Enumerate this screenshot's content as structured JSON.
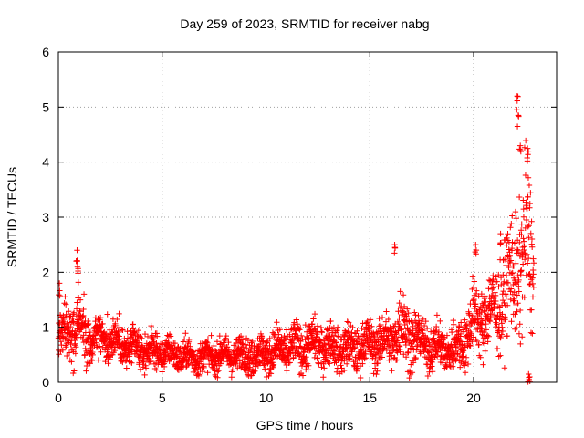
{
  "chart_data": {
    "type": "scatter",
    "title": "Day 259 of 2023, SRMTID for receiver nabg",
    "xlabel": "GPS time / hours",
    "ylabel": "SRMTID / TECUs",
    "xlim": [
      0,
      24
    ],
    "ylim": [
      0,
      6
    ],
    "xticks": [
      0,
      5,
      10,
      15,
      20
    ],
    "yticks": [
      0,
      1,
      2,
      3,
      4,
      5,
      6
    ],
    "grid": true,
    "marker": "+",
    "color": "#ff0000",
    "series": [
      {
        "name": "SRMTID",
        "envelope_x": [
          0,
          0.3,
          0.9,
          1.5,
          2.5,
          3.5,
          5,
          6.5,
          8,
          9.5,
          11,
          12.5,
          14,
          15,
          16,
          16.5,
          17.5,
          18.5,
          19.2,
          20,
          21,
          22,
          22.5,
          22.9
        ],
        "envelope_mean": [
          0.8,
          0.9,
          1.0,
          0.8,
          0.8,
          0.6,
          0.55,
          0.45,
          0.5,
          0.5,
          0.6,
          0.7,
          0.6,
          0.7,
          0.75,
          1.0,
          0.7,
          0.6,
          0.6,
          1.1,
          1.3,
          2.0,
          2.5,
          2.0
        ],
        "envelope_spread": [
          0.35,
          0.4,
          0.5,
          0.35,
          0.35,
          0.3,
          0.25,
          0.25,
          0.25,
          0.3,
          0.35,
          0.35,
          0.35,
          0.35,
          0.4,
          0.6,
          0.35,
          0.3,
          0.4,
          0.55,
          0.6,
          1.0,
          1.3,
          1.0
        ],
        "peaks": [
          {
            "x": 0.05,
            "y": 1.8
          },
          {
            "x": 0.9,
            "y": 2.4
          },
          {
            "x": 0.92,
            "y": 2.1
          },
          {
            "x": 16.2,
            "y": 2.5
          },
          {
            "x": 20.1,
            "y": 2.5
          },
          {
            "x": 21.3,
            "y": 2.7
          },
          {
            "x": 22.1,
            "y": 5.2
          },
          {
            "x": 22.15,
            "y": 4.85
          },
          {
            "x": 22.25,
            "y": 4.3
          },
          {
            "x": 22.6,
            "y": 4.25
          },
          {
            "x": 22.65,
            "y": 0.15
          },
          {
            "x": 22.7,
            "y": 0.1
          }
        ],
        "point_count": 2600
      }
    ]
  }
}
